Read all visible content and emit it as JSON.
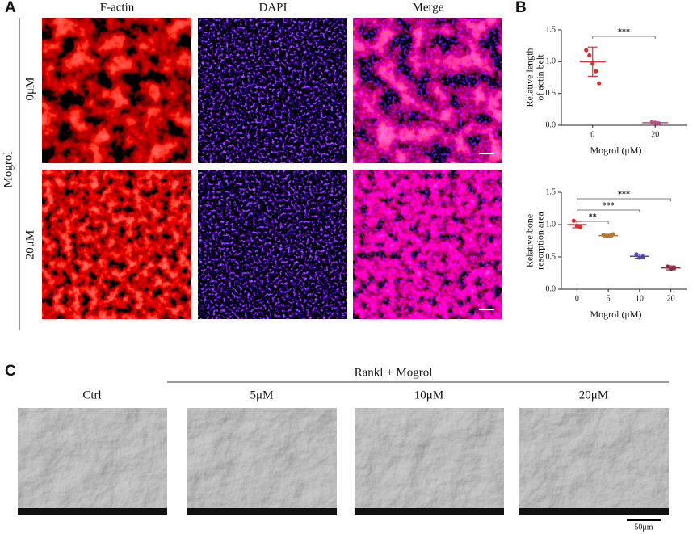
{
  "panels": {
    "a": {
      "label": "A",
      "columns": [
        "F-actin",
        "DAPI",
        "Merge"
      ],
      "rows": [
        "0μM",
        "20μM"
      ],
      "group": "Mogrol"
    },
    "b": {
      "label": "B"
    },
    "c": {
      "label": "C",
      "group": "Rankl + Mogrol",
      "columns": [
        "Ctrl",
        "5μM",
        "10μM",
        "20μM"
      ],
      "scale_bar": "50μm"
    }
  },
  "chart_data": [
    {
      "type": "scatter",
      "ylabel": [
        "Relative length",
        "of actin belt"
      ],
      "xlabel": "Mogrol (μM)",
      "categories": [
        "0",
        "20"
      ],
      "ylim": [
        0,
        1.5
      ],
      "yticks": [
        {
          "value": 0,
          "label": "0.0"
        },
        {
          "value": 0.5,
          "label": "0.5"
        },
        {
          "value": 1,
          "label": "1.0"
        },
        {
          "value": 1.5,
          "label": "1.5"
        }
      ],
      "groups": [
        {
          "color": "#e02b2b",
          "points": [
            1.18,
            1.1,
            0.97,
            0.85,
            0.66
          ],
          "mean": 1.0,
          "sd": 0.23
        },
        {
          "color": "#c04a8a",
          "points": [
            0.05,
            0.04,
            0.03
          ],
          "mean": 0.04,
          "sd": 0.01
        }
      ],
      "significance": [
        {
          "from": "0",
          "to": "20",
          "text": "***"
        }
      ]
    },
    {
      "type": "scatter",
      "ylabel": [
        "Relative bone",
        "resorption area"
      ],
      "xlabel": "Mogrol (μM)",
      "categories": [
        "0",
        "5",
        "10",
        "20"
      ],
      "ylim": [
        0,
        1.5
      ],
      "yticks": [
        {
          "value": 0,
          "label": "0.0"
        },
        {
          "value": 0.5,
          "label": "0.5"
        },
        {
          "value": 1,
          "label": "1.0"
        },
        {
          "value": 1.5,
          "label": "1.5"
        }
      ],
      "groups": [
        {
          "color": "#e02b2b",
          "points": [
            1.06,
            0.98,
            0.96
          ],
          "mean": 1.0,
          "sd": 0.05
        },
        {
          "color": "#b8752a",
          "points": [
            0.84,
            0.82,
            0.83,
            0.85
          ],
          "mean": 0.83,
          "sd": 0.02
        },
        {
          "color": "#5a3fa8",
          "points": [
            0.54,
            0.49,
            0.5
          ],
          "mean": 0.51,
          "sd": 0.03
        },
        {
          "color": "#8b2a3a",
          "points": [
            0.35,
            0.31,
            0.33
          ],
          "mean": 0.33,
          "sd": 0.03
        }
      ],
      "significance": [
        {
          "from": "0",
          "to": "5",
          "text": "**"
        },
        {
          "from": "0",
          "to": "10",
          "text": "***"
        },
        {
          "from": "0",
          "to": "20",
          "text": "***"
        }
      ]
    }
  ]
}
